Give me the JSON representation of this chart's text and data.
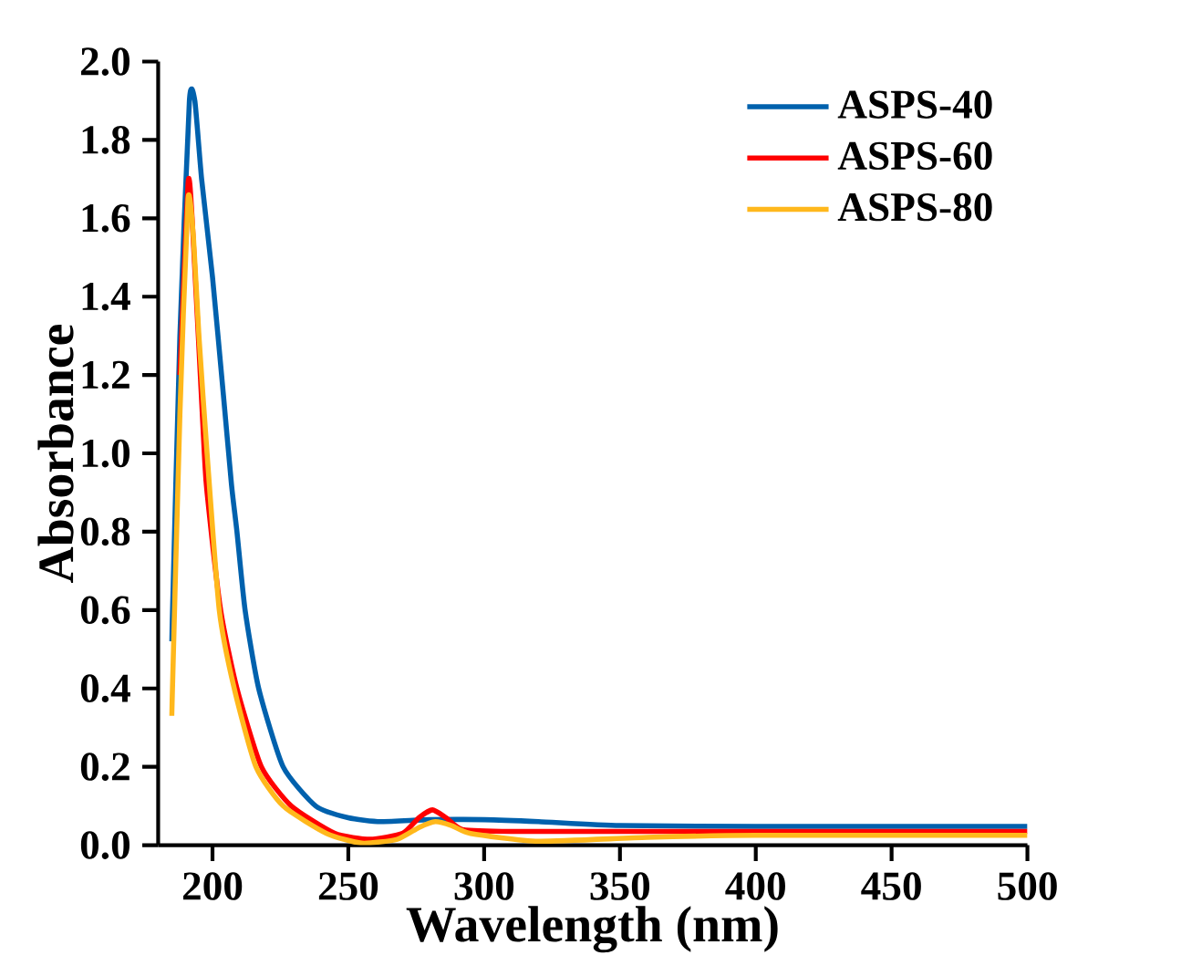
{
  "chart_data": {
    "type": "line",
    "xlabel": "Wavelength (nm)",
    "ylabel": "Absorbance",
    "xlim": [
      180,
      500
    ],
    "xticks": [
      200,
      250,
      300,
      350,
      400,
      450,
      500
    ],
    "ylim": [
      0,
      2.0
    ],
    "yticks": [
      {
        "value": 0,
        "label": "0.0"
      },
      0.2,
      0.4,
      0.6,
      0.8,
      {
        "value": 1,
        "label": "1.0"
      },
      1.2,
      1.4,
      1.6,
      1.8,
      {
        "value": 2,
        "label": "2.0"
      }
    ],
    "legend": "top right",
    "grid": false,
    "marker": "none",
    "line_style": "solid",
    "series": [
      {
        "name": "ASPS-40",
        "color": "#0061ad",
        "x": [
          185,
          188,
          191.5,
          193.5,
          196,
          200,
          204,
          207,
          209,
          212,
          217,
          226,
          238,
          250,
          262,
          280,
          300,
          320,
          350,
          400,
          500
        ],
        "values": [
          0.52,
          1.3,
          1.9,
          1.9,
          1.7,
          1.45,
          1.15,
          0.92,
          0.8,
          0.6,
          0.4,
          0.2,
          0.1,
          0.07,
          0.06,
          0.065,
          0.065,
          0.06,
          0.05,
          0.048,
          0.048
        ]
      },
      {
        "name": "ASPS-60",
        "color": "#ff0000",
        "x": [
          188,
          191,
          192.5,
          197,
          198,
          203,
          209,
          218,
          229,
          245,
          258,
          270,
          276,
          281,
          286,
          292,
          310,
          400,
          500
        ],
        "values": [
          1.2,
          1.69,
          1.6,
          1.0,
          0.9,
          0.6,
          0.4,
          0.2,
          0.1,
          0.03,
          0.015,
          0.03,
          0.07,
          0.09,
          0.07,
          0.04,
          0.035,
          0.035,
          0.035
        ]
      },
      {
        "name": "ASPS-80",
        "color": "#ffb81c",
        "x": [
          185,
          188,
          191,
          193,
          195,
          198,
          202.5,
          208,
          216,
          226,
          242,
          255,
          268,
          276,
          282,
          288,
          295,
          320,
          360,
          400,
          500
        ],
        "values": [
          0.33,
          1.1,
          1.65,
          1.55,
          1.3,
          1.0,
          0.6,
          0.4,
          0.2,
          0.1,
          0.03,
          0.005,
          0.015,
          0.045,
          0.06,
          0.05,
          0.03,
          0.01,
          0.02,
          0.025,
          0.025
        ]
      }
    ]
  }
}
